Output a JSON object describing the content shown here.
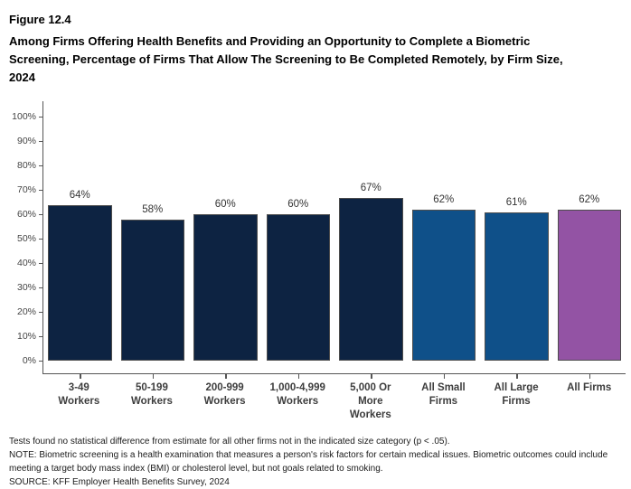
{
  "figure": {
    "label": "Figure 12.4",
    "title": "Among Firms Offering Health Benefits and Providing an Opportunity to Complete a Biometric Screening, Percentage of Firms That Allow The Screening to Be Completed Remotely, by Firm Size, 2024"
  },
  "chart_data": {
    "type": "bar",
    "title": "Among Firms Offering Health Benefits and Providing an Opportunity to Complete a Biometric Screening, Percentage of Firms That Allow The Screening to Be Completed Remotely, by Firm Size, 2024",
    "categories": [
      "3-49 Workers",
      "50-199\nWorkers",
      "200-999\nWorkers",
      "1,000-4,999\nWorkers",
      "5,000 Or\nMore Workers",
      "All Small\nFirms",
      "All Large\nFirms",
      "All Firms"
    ],
    "values": [
      64,
      58,
      60,
      60,
      67,
      62,
      61,
      62
    ],
    "value_labels": [
      "64%",
      "58%",
      "60%",
      "60%",
      "67%",
      "62%",
      "61%",
      "62%"
    ],
    "bar_colors": [
      "#0d2342",
      "#0d2342",
      "#0d2342",
      "#0d2342",
      "#0d2342",
      "#0f5089",
      "#0f5089",
      "#9353a4"
    ],
    "bar_border_color": "#4d4d4d",
    "xlabel": "",
    "ylabel": "",
    "ylim": [
      0,
      100
    ],
    "yticks": [
      "0%",
      "10%",
      "20%",
      "30%",
      "40%",
      "50%",
      "60%",
      "70%",
      "80%",
      "90%",
      "100%"
    ],
    "grid": false,
    "legend": false
  },
  "footnotes": {
    "lines": [
      "Tests found no statistical difference from estimate for all other firms not in the indicated size category (p < .05).",
      "NOTE: Biometric screening is a health examination that measures a person's risk factors for certain medical issues. Biometric outcomes could include meeting a target body mass index (BMI) or cholesterol level, but not goals related to smoking.",
      "SOURCE: KFF Employer Health Benefits Survey, 2024"
    ]
  }
}
